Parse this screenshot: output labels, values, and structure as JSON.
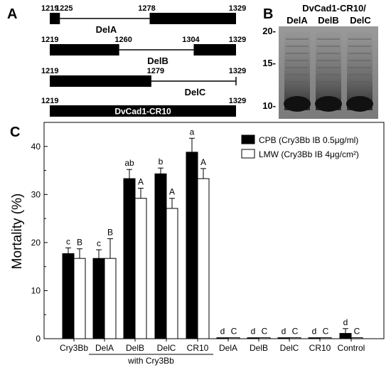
{
  "panel_a": {
    "letter": "A",
    "constructs": [
      {
        "label": "DelA",
        "start": "1219",
        "end": "1329",
        "deletion": [
          1225,
          1278
        ],
        "del_start_label": "1225",
        "del_end_label": "1278"
      },
      {
        "label": "DelB",
        "start": "1219",
        "end": "1329",
        "deletion": [
          1260,
          1304
        ],
        "del_start_label": "1260",
        "del_end_label": "1304"
      },
      {
        "label": "DelC",
        "start": "1219",
        "end": "1329",
        "deletion": [
          1279,
          1329
        ],
        "del_start_label": "1279",
        "del_end_label": ""
      },
      {
        "label": "DvCad1-CR10",
        "start": "1219",
        "end": "1329",
        "deletion": null,
        "del_start_label": "",
        "del_end_label": ""
      }
    ]
  },
  "panel_b": {
    "letter": "B",
    "title_line1": "DvCad1-CR10/",
    "lanes": [
      "DelA",
      "DelB",
      "DelC"
    ],
    "markers": [
      "20-",
      "15-",
      "10-"
    ]
  },
  "chart_data": {
    "type": "bar",
    "panel_letter": "C",
    "ylabel": "Mortality (%)",
    "ylim": [
      0,
      45
    ],
    "yticks": [
      "0",
      "10",
      "20",
      "30",
      "40"
    ],
    "categories": [
      "Cry3Bb",
      "DelA",
      "DelB",
      "DelC",
      "CR10",
      "DelA",
      "DelB",
      "DelC",
      "CR10",
      "Control"
    ],
    "group_label": "with Cry3Bb",
    "series": [
      {
        "name": "CPB (Cry3Bb IB 0.5μg/ml)",
        "color": "#000000",
        "values": [
          17.7,
          16.7,
          33.3,
          34.3,
          38.8,
          0.2,
          0.2,
          0.2,
          0.2,
          1.1
        ],
        "errors": [
          1.2,
          1.8,
          1.9,
          1.2,
          2.9,
          0,
          0,
          0,
          0,
          1.0
        ],
        "letters": [
          "c",
          "c",
          "ab",
          "b",
          "a",
          "d",
          "d",
          "d",
          "d",
          "d"
        ]
      },
      {
        "name": "LMW (Cry3Bb IB 4μg/cm²)",
        "color": "#ffffff",
        "values": [
          16.7,
          16.7,
          29.2,
          27.1,
          33.3,
          0.2,
          0.2,
          0.2,
          0.2,
          0.2
        ],
        "errors": [
          2.0,
          4.1,
          2.1,
          2.1,
          2.1,
          0,
          0,
          0,
          0,
          0
        ],
        "letters": [
          "B",
          "B",
          "A",
          "A",
          "A",
          "C",
          "C",
          "C",
          "C",
          "C"
        ]
      }
    ],
    "legend_position": "top-right",
    "grid": false
  }
}
